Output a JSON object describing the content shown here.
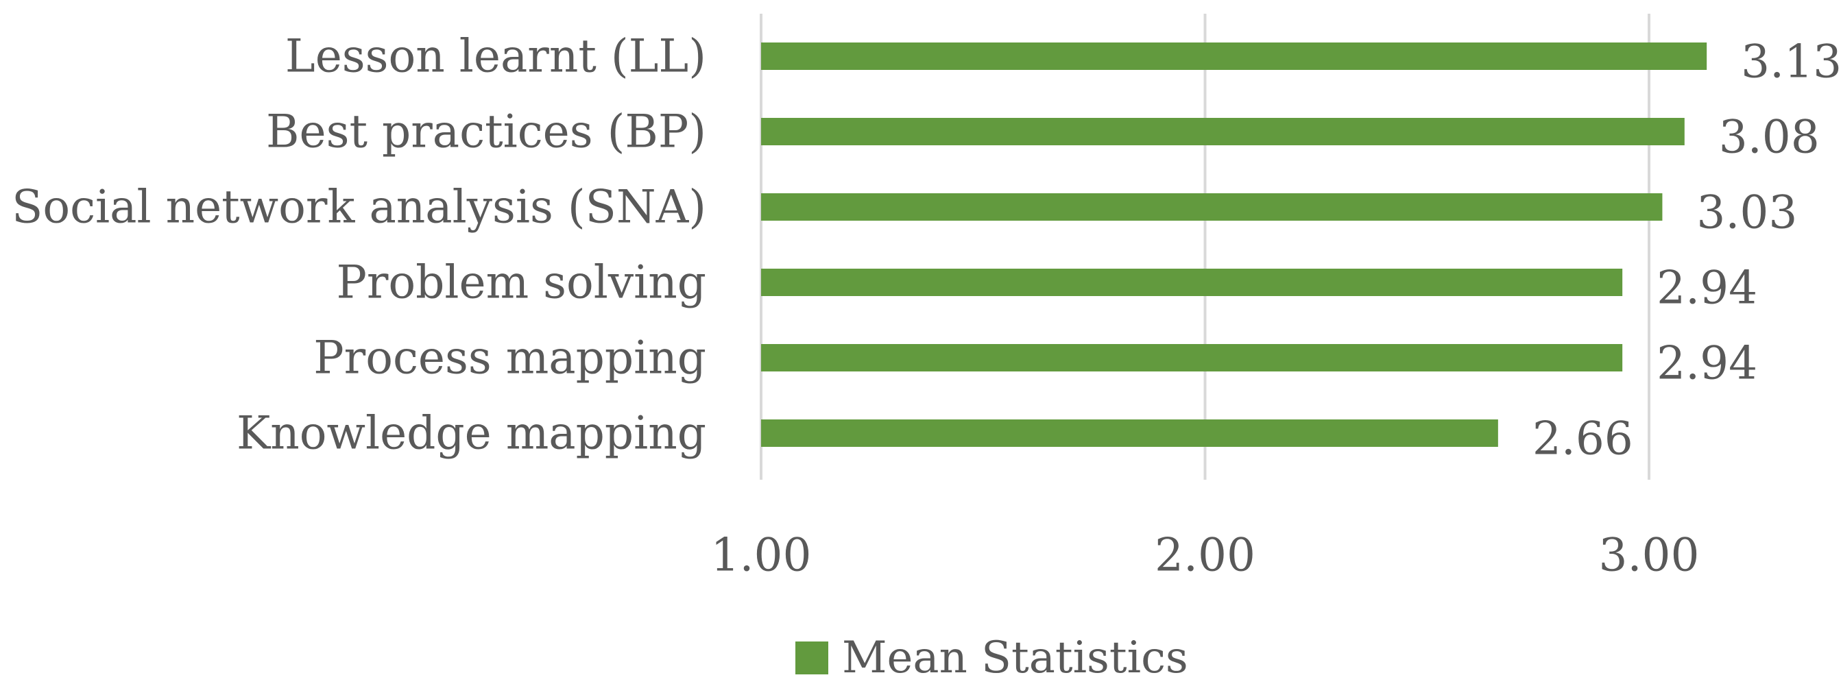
{
  "chart_data": {
    "type": "bar",
    "orientation": "horizontal",
    "categories": [
      "Lesson learnt (LL)",
      "Best practices (BP)",
      "Social network analysis (SNA)",
      "Problem solving",
      "Process mapping",
      "Knowledge mapping"
    ],
    "series": [
      {
        "name": "Mean Statistics",
        "values": [
          3.13,
          3.08,
          3.03,
          2.94,
          2.94,
          2.66
        ],
        "value_labels": [
          "3.13",
          "3.08",
          "3.03",
          "2.94",
          "2.94",
          "2.66"
        ],
        "color": "#629A3E"
      }
    ],
    "xlim": [
      1.0,
      3.0
    ],
    "xticks": [
      1.0,
      2.0,
      3.0
    ],
    "xtick_labels": [
      "1.00",
      "2.00",
      "3.00"
    ],
    "title": "",
    "xlabel": "",
    "ylabel": "",
    "grid": true,
    "gridline_color": "#D9D9D9",
    "legend_position": "bottom",
    "legend_labels": [
      "Mean Statistics"
    ],
    "data_labels": true
  }
}
